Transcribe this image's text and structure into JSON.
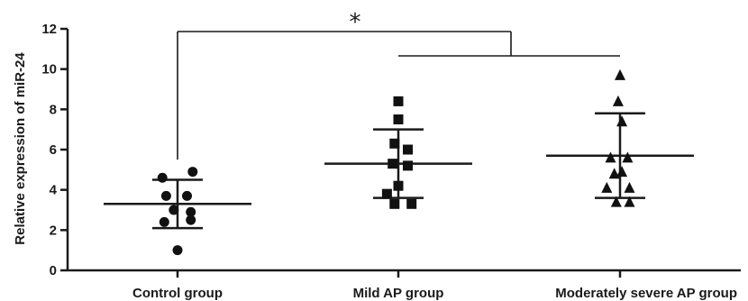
{
  "chart_data": {
    "type": "scatter",
    "ylabel": "Relative expression of miR-24",
    "ylim": [
      0,
      12
    ],
    "yticks": [
      0,
      2,
      4,
      6,
      8,
      10,
      12
    ],
    "grid": false,
    "categories": [
      "Control group",
      "Mild AP group",
      "Moderately severe AP group"
    ],
    "series": [
      {
        "marker": "circle",
        "points": [
          [
            -0.08,
            4.6
          ],
          [
            0.08,
            4.9
          ],
          [
            -0.06,
            3.7
          ],
          [
            0.05,
            3.7
          ],
          [
            -0.02,
            3.0
          ],
          [
            0.07,
            2.9
          ],
          [
            -0.07,
            2.4
          ],
          [
            0.07,
            2.5
          ],
          [
            0.0,
            1.0
          ]
        ],
        "mean": 3.3,
        "upper": 4.5,
        "lower": 2.1
      },
      {
        "marker": "square",
        "points": [
          [
            0.0,
            8.4
          ],
          [
            0.0,
            7.5
          ],
          [
            -0.02,
            6.3
          ],
          [
            0.05,
            6.0
          ],
          [
            -0.03,
            5.3
          ],
          [
            0.05,
            5.2
          ],
          [
            0.0,
            4.2
          ],
          [
            -0.06,
            3.8
          ],
          [
            -0.02,
            3.3
          ],
          [
            0.07,
            3.3
          ]
        ],
        "mean": 5.3,
        "upper": 7.0,
        "lower": 3.6
      },
      {
        "marker": "triangle",
        "points": [
          [
            0.0,
            9.7
          ],
          [
            -0.01,
            8.4
          ],
          [
            0.01,
            7.4
          ],
          [
            -0.05,
            5.6
          ],
          [
            0.04,
            5.6
          ],
          [
            0.01,
            4.9
          ],
          [
            -0.03,
            4.8
          ],
          [
            -0.07,
            4.1
          ],
          [
            0.05,
            4.1
          ],
          [
            -0.02,
            3.4
          ],
          [
            0.05,
            3.4
          ]
        ],
        "mean": 5.7,
        "upper": 7.8,
        "lower": 3.6
      }
    ],
    "annotations": [
      {
        "text": "*",
        "from": 0,
        "to_bracket": [
          1,
          2
        ]
      }
    ]
  }
}
